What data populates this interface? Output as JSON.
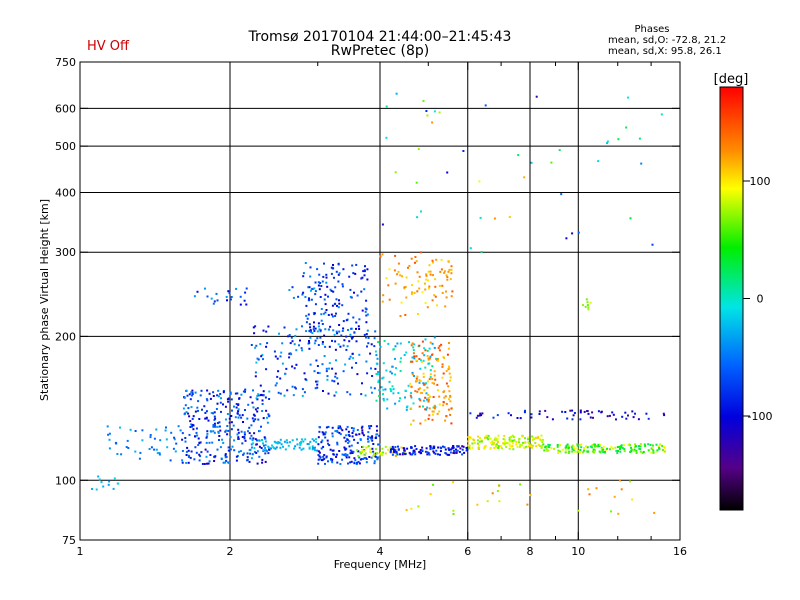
{
  "header": {
    "title": "Tromsø 20170104 21:44:00–21:45:43",
    "subtitle": "RwPretec (8p)",
    "status": "HV Off",
    "phases_title": "Phases",
    "phases_o": "mean, sd,O: -72.8, 21.2",
    "phases_x": "mean, sd,X:  95.8, 26.1"
  },
  "colors": {
    "status": "#cc0000",
    "axis": "#000000"
  },
  "chart_data": {
    "type": "scatter",
    "xlabel": "Frequency [MHz]",
    "ylabel": "Stationary phase Virtual Height [km]",
    "x_scale": "log",
    "y_scale": "log",
    "xlim": [
      1,
      16
    ],
    "ylim": [
      75,
      750
    ],
    "x_ticks": [
      1,
      2,
      4,
      6,
      8,
      10,
      16
    ],
    "x_minor_ticks": [
      3,
      5,
      7,
      9,
      12,
      14
    ],
    "y_ticks": [
      75,
      100,
      200,
      300,
      400,
      500,
      600,
      750
    ],
    "grid_x": [
      2,
      4,
      6,
      8,
      10
    ],
    "grid_y": [
      100,
      200,
      300,
      400,
      500,
      600
    ],
    "grid": true,
    "colorbar": {
      "label": "[deg]",
      "min": -180,
      "max": 180,
      "ticks": [
        100,
        0,
        -100
      ]
    },
    "clusters": [
      {
        "x": [
          1.05,
          1.2
        ],
        "y": [
          95,
          102
        ],
        "phase": [
          -40,
          -10
        ],
        "n": 12
      },
      {
        "x": [
          1.1,
          1.6
        ],
        "y": [
          110,
          130
        ],
        "phase": [
          -70,
          -20
        ],
        "n": 45
      },
      {
        "x": [
          1.6,
          2.4
        ],
        "y": [
          108,
          155
        ],
        "phase": [
          -120,
          -30
        ],
        "n": 320
      },
      {
        "x": [
          1.7,
          2.2
        ],
        "y": [
          232,
          252
        ],
        "phase": [
          -110,
          -30
        ],
        "n": 22
      },
      {
        "x": [
          2.2,
          4.0
        ],
        "y": [
          150,
          210
        ],
        "phase": [
          -110,
          -20
        ],
        "n": 180
      },
      {
        "x": [
          2.6,
          3.0
        ],
        "y": [
          238,
          255
        ],
        "phase": [
          -80,
          -20
        ],
        "n": 15
      },
      {
        "x": [
          2.8,
          3.8
        ],
        "y": [
          195,
          285
        ],
        "phase": [
          -110,
          -40
        ],
        "n": 150
      },
      {
        "x": [
          2.2,
          3.0
        ],
        "y": [
          115,
          122
        ],
        "phase": [
          -40,
          -10
        ],
        "n": 70
      },
      {
        "x": [
          3.0,
          4.0
        ],
        "y": [
          108,
          130
        ],
        "phase": [
          -120,
          -40
        ],
        "n": 180
      },
      {
        "x": [
          3.6,
          4.6
        ],
        "y": [
          112,
          118
        ],
        "phase": [
          60,
          120
        ],
        "n": 40
      },
      {
        "x": [
          3.9,
          5.2
        ],
        "y": [
          140,
          200
        ],
        "phase": [
          -40,
          20
        ],
        "n": 110
      },
      {
        "x": [
          4.6,
          5.6
        ],
        "y": [
          130,
          195
        ],
        "phase": [
          100,
          160
        ],
        "n": 130
      },
      {
        "x": [
          4.0,
          5.0
        ],
        "y": [
          220,
          300
        ],
        "phase": [
          90,
          150
        ],
        "n": 50
      },
      {
        "x": [
          5.0,
          5.6
        ],
        "y": [
          230,
          290
        ],
        "phase": [
          100,
          150
        ],
        "n": 40
      },
      {
        "x": [
          4.2,
          6.0
        ],
        "y": [
          113,
          118
        ],
        "phase": [
          -130,
          -60
        ],
        "n": 120
      },
      {
        "x": [
          6.0,
          8.5
        ],
        "y": [
          116,
          124
        ],
        "phase": [
          60,
          110
        ],
        "n": 150
      },
      {
        "x": [
          8.5,
          15.0
        ],
        "y": [
          114,
          119
        ],
        "phase": [
          20,
          100
        ],
        "n": 160
      },
      {
        "x": [
          6.0,
          15.0
        ],
        "y": [
          134,
          140
        ],
        "phase": [
          -140,
          -70
        ],
        "n": 60
      },
      {
        "x": [
          4.5,
          15.0
        ],
        "y": [
          85,
          100
        ],
        "phase": [
          60,
          140
        ],
        "n": 30
      },
      {
        "x": [
          4.0,
          15.0
        ],
        "y": [
          300,
          650
        ],
        "phase": [
          -130,
          130
        ],
        "n": 45
      },
      {
        "x": [
          10.2,
          10.6
        ],
        "y": [
          225,
          240
        ],
        "phase": [
          60,
          90
        ],
        "n": 8
      }
    ]
  }
}
